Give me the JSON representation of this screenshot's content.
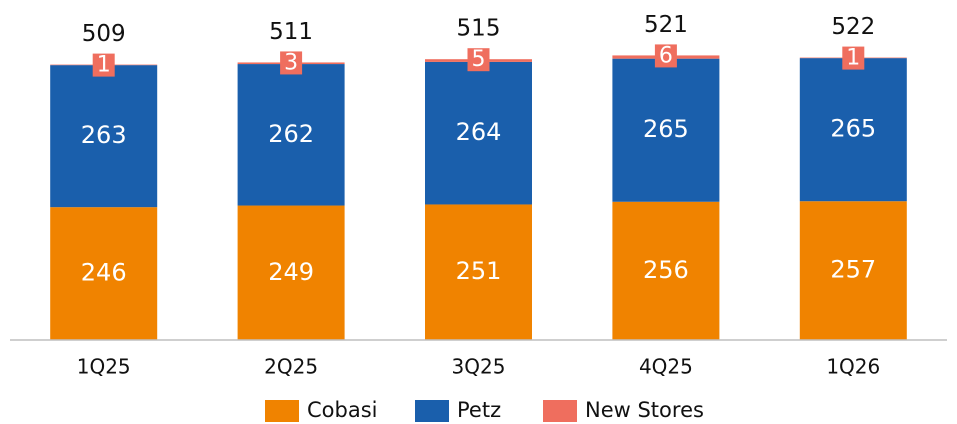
{
  "chart_data": {
    "type": "bar",
    "stacked": true,
    "categories": [
      "1Q25",
      "2Q25",
      "3Q25",
      "4Q25",
      "1Q26"
    ],
    "series": [
      {
        "name": "Cobasi",
        "color": "#f08300",
        "values": [
          246,
          249,
          251,
          256,
          257
        ]
      },
      {
        "name": "Petz",
        "color": "#1a5fac",
        "values": [
          263,
          262,
          264,
          265,
          265
        ]
      },
      {
        "name": "New Stores",
        "color": "#ef6e5e",
        "values": [
          1,
          3,
          5,
          6,
          1
        ]
      }
    ],
    "totals": [
      509,
      511,
      515,
      521,
      522
    ],
    "ylim": [
      0,
      600
    ],
    "grid": false,
    "legend": "bottom"
  }
}
